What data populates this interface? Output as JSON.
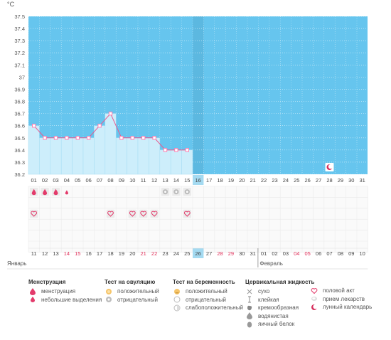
{
  "chart_data": {
    "type": "line",
    "unit_label": "°C",
    "y_ticks": [
      "37.5",
      "37.4",
      "37.3",
      "37.2",
      "37.1",
      "37",
      "36.9",
      "36.8",
      "36.7",
      "36.6",
      "36.5",
      "36.4",
      "36.3",
      "36.2"
    ],
    "ylim": [
      36.2,
      37.5
    ],
    "cycle_days": [
      "01",
      "02",
      "03",
      "04",
      "05",
      "06",
      "07",
      "08",
      "09",
      "10",
      "11",
      "12",
      "13",
      "14",
      "15",
      "16",
      "17",
      "18",
      "19",
      "20",
      "21",
      "22",
      "23",
      "24",
      "25",
      "26",
      "27",
      "28",
      "29",
      "30",
      "31"
    ],
    "temperature_series": {
      "days": [
        1,
        2,
        3,
        4,
        5,
        6,
        7,
        8,
        9,
        10,
        11,
        12,
        13,
        14,
        15
      ],
      "values": [
        36.6,
        36.5,
        36.5,
        36.5,
        36.5,
        36.5,
        36.6,
        36.7,
        36.5,
        36.5,
        36.5,
        36.5,
        36.4,
        36.4,
        36.4
      ]
    },
    "current_day": 16,
    "menstruation_days": [
      1,
      2,
      3
    ],
    "spotting_days": [
      4
    ],
    "ovulation_negative_days": [
      13,
      14,
      15
    ],
    "intercourse_days": [
      1,
      8,
      10,
      11,
      12,
      15
    ],
    "lunar_day": 28,
    "calendar": {
      "dates": [
        "11",
        "12",
        "13",
        "14",
        "15",
        "16",
        "17",
        "18",
        "19",
        "20",
        "21",
        "22",
        "23",
        "24",
        "25",
        "26",
        "27",
        "28",
        "29",
        "30",
        "31",
        "01",
        "02",
        "03",
        "04",
        "05",
        "06",
        "07",
        "08",
        "09",
        "10"
      ],
      "weekend_days": [
        4,
        5,
        11,
        12,
        18,
        19,
        25,
        26
      ],
      "month_start": "Январь",
      "month_next": "Февраль",
      "next_month_index": 22,
      "weekend_color": "#e0305a"
    },
    "colors": {
      "sky": "#66c5ee",
      "bar_fill": "#cdeefb",
      "line": "#e85a90",
      "marker": "#ff7eb0",
      "highlight": "#a4daf1"
    }
  },
  "legend": {
    "menstruation": {
      "title": "Менструация",
      "items": [
        "менструация",
        "небольшие выделения"
      ]
    },
    "ovulation": {
      "title": "Тест на овуляцию",
      "items": [
        "положительный",
        "отрицательный"
      ]
    },
    "pregnancy": {
      "title": "Тест на беременность",
      "items": [
        "положительный",
        "отрицательный",
        "слабоположительный"
      ]
    },
    "cervical": {
      "title": "Цервикальная жидкость",
      "items": [
        "сухо",
        "клейкая",
        "кремообразная",
        "водянистая",
        "яичный белок"
      ]
    },
    "other": {
      "items": [
        "половой акт",
        "прием лекарств",
        "лунный календарь"
      ]
    }
  },
  "icons": {
    "menstruation": "drop-icon",
    "spotting": "small-drop-icon",
    "ovulation_positive": "sun-icon",
    "ovulation_negative": "gray-circle-icon",
    "pregnancy_positive": "smiley-icon",
    "pregnancy_negative": "circle-icon",
    "pregnancy_weak": "half-circle-icon",
    "dry": "cross-icon",
    "sticky": "pin-icon",
    "creamy": "blob-icon",
    "watery": "drop-gray-icon",
    "egg_white": "egg-icon",
    "intercourse": "heart-icon",
    "medication": "pill-icon",
    "lunar": "moon-icon"
  }
}
